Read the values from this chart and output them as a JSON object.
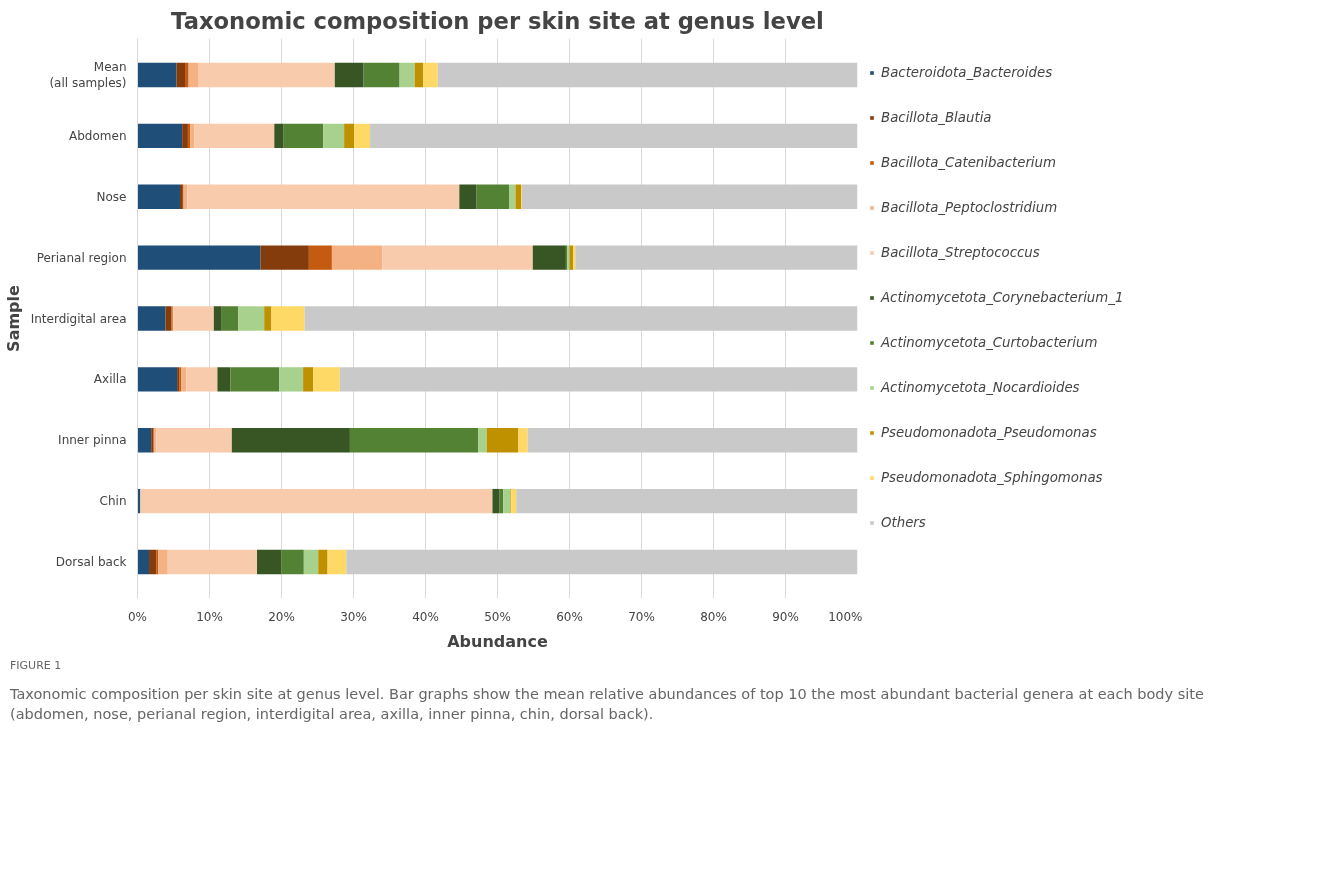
{
  "chart_data": {
    "type": "bar",
    "orientation": "horizontal",
    "stacked": true,
    "title": "Taxonomic composition per skin site at genus level",
    "xlabel": "Abundance",
    "ylabel": "Sample",
    "categories": [
      "Mean\n(all samples)",
      "Abdomen",
      "Nose",
      "Perianal region",
      "Interdigital area",
      "Axilla",
      "Inner pinna",
      "Chin",
      "Dorsal back"
    ],
    "series": [
      {
        "name": "Bacteroidota_Bacteroides",
        "color": "#1f4e79",
        "values": [
          5.4,
          6.2,
          5.9,
          17.1,
          3.9,
          5.5,
          1.9,
          0.4,
          1.6
        ]
      },
      {
        "name": "Bacillota_Blautia",
        "color": "#843c0c",
        "values": [
          1.2,
          0.8,
          0.4,
          6.7,
          0.8,
          0.3,
          0.3,
          0.0,
          1.0
        ]
      },
      {
        "name": "Bacillota_Catenibacterium",
        "color": "#c55a11",
        "values": [
          0.5,
          0.3,
          0.1,
          3.2,
          0.2,
          0.3,
          0.1,
          0.0,
          0.3
        ]
      },
      {
        "name": "Bacillota_Peptoclostridium",
        "color": "#f4b183",
        "values": [
          1.4,
          0.6,
          0.5,
          7.0,
          0.1,
          0.7,
          0.3,
          0.0,
          1.3
        ]
      },
      {
        "name": "Bacillota_Streptococcus",
        "color": "#f8cbad",
        "values": [
          18.9,
          11.1,
          37.8,
          20.9,
          5.6,
          4.3,
          10.5,
          48.9,
          12.4
        ]
      },
      {
        "name": "Actinomycetota_Corynebacterium_1",
        "color": "#375623",
        "values": [
          4.0,
          1.3,
          2.4,
          4.6,
          1.1,
          1.8,
          16.4,
          1.0,
          3.4
        ]
      },
      {
        "name": "Actinomycetota_Curtobacterium",
        "color": "#548235",
        "values": [
          5.0,
          5.5,
          4.5,
          0.2,
          2.3,
          6.8,
          17.8,
          0.5,
          3.1
        ]
      },
      {
        "name": "Actinomycetota_Nocardioides",
        "color": "#a9d18e",
        "values": [
          2.1,
          2.9,
          0.9,
          0.3,
          3.6,
          3.3,
          1.2,
          1.0,
          2.0
        ]
      },
      {
        "name": "Pseudomonadota_Pseudomonas",
        "color": "#bf9000",
        "values": [
          1.2,
          1.4,
          0.8,
          0.5,
          1.0,
          1.4,
          4.4,
          0.1,
          1.3
        ]
      },
      {
        "name": "Pseudomonadota_Sphingomonas",
        "color": "#ffd966",
        "values": [
          2.0,
          2.2,
          0.1,
          0.3,
          4.6,
          3.7,
          1.3,
          0.7,
          2.6
        ]
      },
      {
        "name": "Others",
        "color": "#c9c9c9",
        "values": [
          58.3,
          67.7,
          46.6,
          39.2,
          76.9,
          71.9,
          45.8,
          47.4,
          71.0
        ]
      }
    ],
    "xlim": [
      0,
      100
    ],
    "xticks": [
      {
        "value": 0,
        "label": "0%"
      },
      {
        "value": 10,
        "label": "10%"
      },
      {
        "value": 20,
        "label": "20%"
      },
      {
        "value": 30,
        "label": "30%"
      },
      {
        "value": 40,
        "label": "40%"
      },
      {
        "value": 50,
        "label": "50%"
      },
      {
        "value": 60,
        "label": "60%"
      },
      {
        "value": 70,
        "label": "70%"
      },
      {
        "value": 80,
        "label": "80%"
      },
      {
        "value": 90,
        "label": "90%"
      },
      {
        "value": 100,
        "label": "100%"
      }
    ],
    "grid": "x",
    "legend": "right",
    "annotations": [
      "FIGURE 1",
      "Taxonomic composition per skin site at genus level. Bar graphs show the mean relative abundances of top 10 the most abundant bacterial genera at each body site (abdomen, nose, perianal region, interdigital area, axilla, inner pinna, chin, dorsal back)."
    ]
  }
}
